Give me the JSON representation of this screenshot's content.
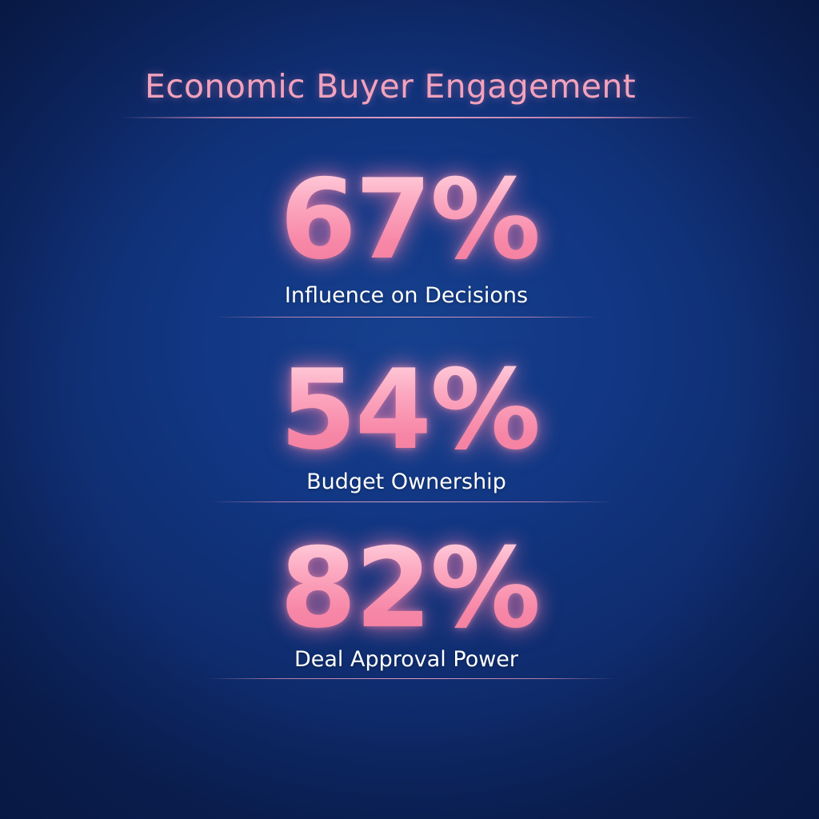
{
  "title": "Economic Buyer Engagement",
  "stats": [
    {
      "value": "67%",
      "label": "Influence on Decisions"
    },
    {
      "value": "54%",
      "label": "Budget Ownership"
    },
    {
      "value": "82%",
      "label": "Deal Approval Power"
    }
  ],
  "colors": {
    "background": "#123784",
    "accent": "#f99cb5",
    "label": "#ffffff"
  }
}
